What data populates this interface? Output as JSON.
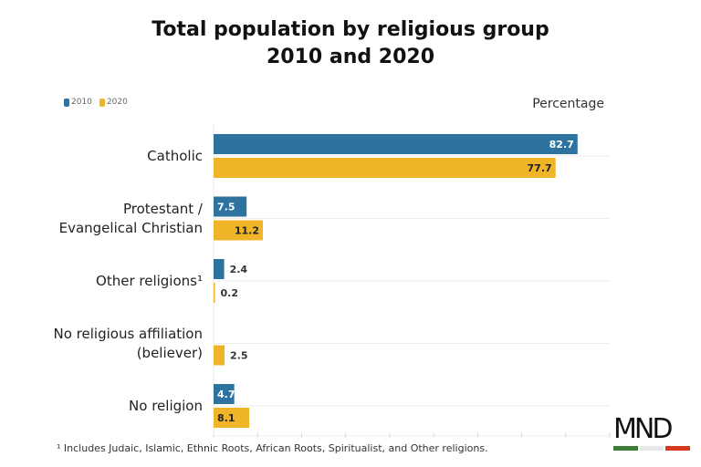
{
  "chart_data": {
    "type": "bar",
    "orientation": "horizontal",
    "title": "Total population by religious group\n2010 and 2020",
    "title_lines": [
      "Total population by religious group",
      "2010 and 2020"
    ],
    "unit_label": "Percentage",
    "categories": [
      [
        "Catholic"
      ],
      [
        "Protestant /",
        "Evangelical Christian"
      ],
      [
        "Other religions¹"
      ],
      [
        "No religious affiliation",
        "(believer)"
      ],
      [
        "No religion"
      ]
    ],
    "series": [
      {
        "name": "2010",
        "color": "#2e73a0",
        "values": [
          82.7,
          7.5,
          2.4,
          null,
          4.7
        ]
      },
      {
        "name": "2020",
        "color": "#f0b429",
        "values": [
          77.7,
          11.2,
          0.2,
          2.5,
          8.1
        ]
      }
    ],
    "xlim": [
      0,
      90
    ],
    "grid": true,
    "legend_position": "top-left",
    "footnote": "¹ Includes Judaic, Islamic, Ethnic Roots, African Roots, Spiritualist, and Other religions."
  },
  "logo": {
    "text": "MND",
    "colors": [
      "#3e7d35",
      "#e8e8e8",
      "#d9381e"
    ]
  }
}
